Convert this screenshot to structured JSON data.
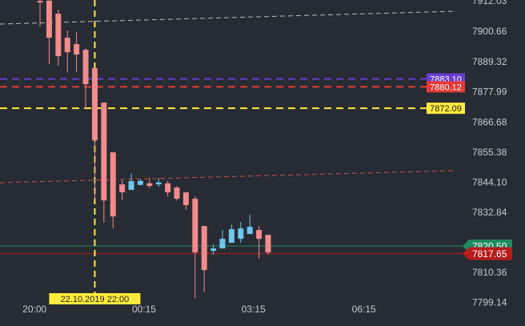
{
  "chart_data": {
    "type": "candlestick",
    "up_color": "#6ec6f0",
    "down_color": "#f28b8b",
    "x": [
      1,
      2,
      3,
      4,
      5,
      6,
      7,
      8,
      9,
      10,
      11,
      12,
      13,
      14,
      15,
      16,
      17,
      18,
      19,
      20,
      21,
      22,
      23,
      24,
      25,
      26
    ],
    "open": [
      7912.3,
      7912.4,
      7907.5,
      7898.5,
      7896.1,
      7894.0,
      7887.1,
      7874.2,
      7855.6,
      7843.6,
      7841.5,
      7843.4,
      7844.0,
      7843.6,
      7844.0,
      7842.4,
      7840.6,
      7838.2,
      7828.0,
      7818.7,
      7819.6,
      7821.7,
      7823.2,
      7825.0,
      7826.5,
      7824.7
    ],
    "high": [
      7912.6,
      7912.6,
      7909.0,
      7901.2,
      7900.6,
      7894.6,
      7887.1,
      7874.2,
      7855.6,
      7845.1,
      7847.8,
      7845.5,
      7846.0,
      7846.0,
      7844.9,
      7843.0,
      7840.6,
      7839.1,
      7828.0,
      7821.1,
      7826.5,
      7828.6,
      7829.5,
      7832.2,
      7828.0,
      7824.7
    ],
    "low": [
      7902.7,
      7888.6,
      7888.0,
      7885.6,
      7885.6,
      7872.1,
      7837.6,
      7829.2,
      7827.1,
      7837.6,
      7841.5,
      7843.1,
      7842.1,
      7842.7,
      7839.1,
      7837.6,
      7834.0,
      7801.0,
      7803.2,
      7817.2,
      7819.6,
      7821.7,
      7821.7,
      7825.0,
      7815.8,
      7817.2
    ],
    "close": [
      7911.7,
      7898.5,
      7891.6,
      7893.1,
      7892.2,
      7881.1,
      7860.1,
      7837.6,
      7831.6,
      7840.6,
      7844.8,
      7844.9,
      7843.0,
      7844.3,
      7840.6,
      7838.2,
      7835.8,
      7818.1,
      7811.5,
      7819.6,
      7823.2,
      7826.8,
      7827.1,
      7827.7,
      7823.2,
      7818.1
    ],
    "xlim": [
      -3.39,
      47.67
    ],
    "xticks": [
      {
        "value": 0.4,
        "label": "20:00"
      },
      {
        "value": 12.4,
        "label": "00:15"
      },
      {
        "value": 24.4,
        "label": "03:15"
      },
      {
        "value": 36.5,
        "label": "06:15"
      }
    ],
    "ylim": [
      7798.65,
      7912.63
    ],
    "yticks": [
      7912.03,
      7900.66,
      7889.32,
      7877.99,
      7866.68,
      7855.38,
      {
        "value": 7844.1,
        "label": "7844.10"
      },
      7832.84,
      7810.36,
      7799.14
    ],
    "levels": [
      {
        "value": 7883.1,
        "label": "7883.10",
        "color": "#6a3fd0",
        "dashed": true
      },
      {
        "value": 7880.12,
        "label": "7880.12",
        "color": "#e53935",
        "dashed": true
      },
      {
        "value": 7872.09,
        "label": "7872.09",
        "color": "#ffeb3b",
        "dashed": true
      },
      {
        "value": 7820.5,
        "label": "7820.50",
        "color": "#1e8c62",
        "dashed": false
      },
      {
        "value": 7817.65,
        "label": "7817.65",
        "color": "#b71c1c",
        "dashed": false
      }
    ],
    "marker": {
      "x": 7,
      "label": "22.10.2019 22:00",
      "color": "#ffeb3b"
    }
  }
}
